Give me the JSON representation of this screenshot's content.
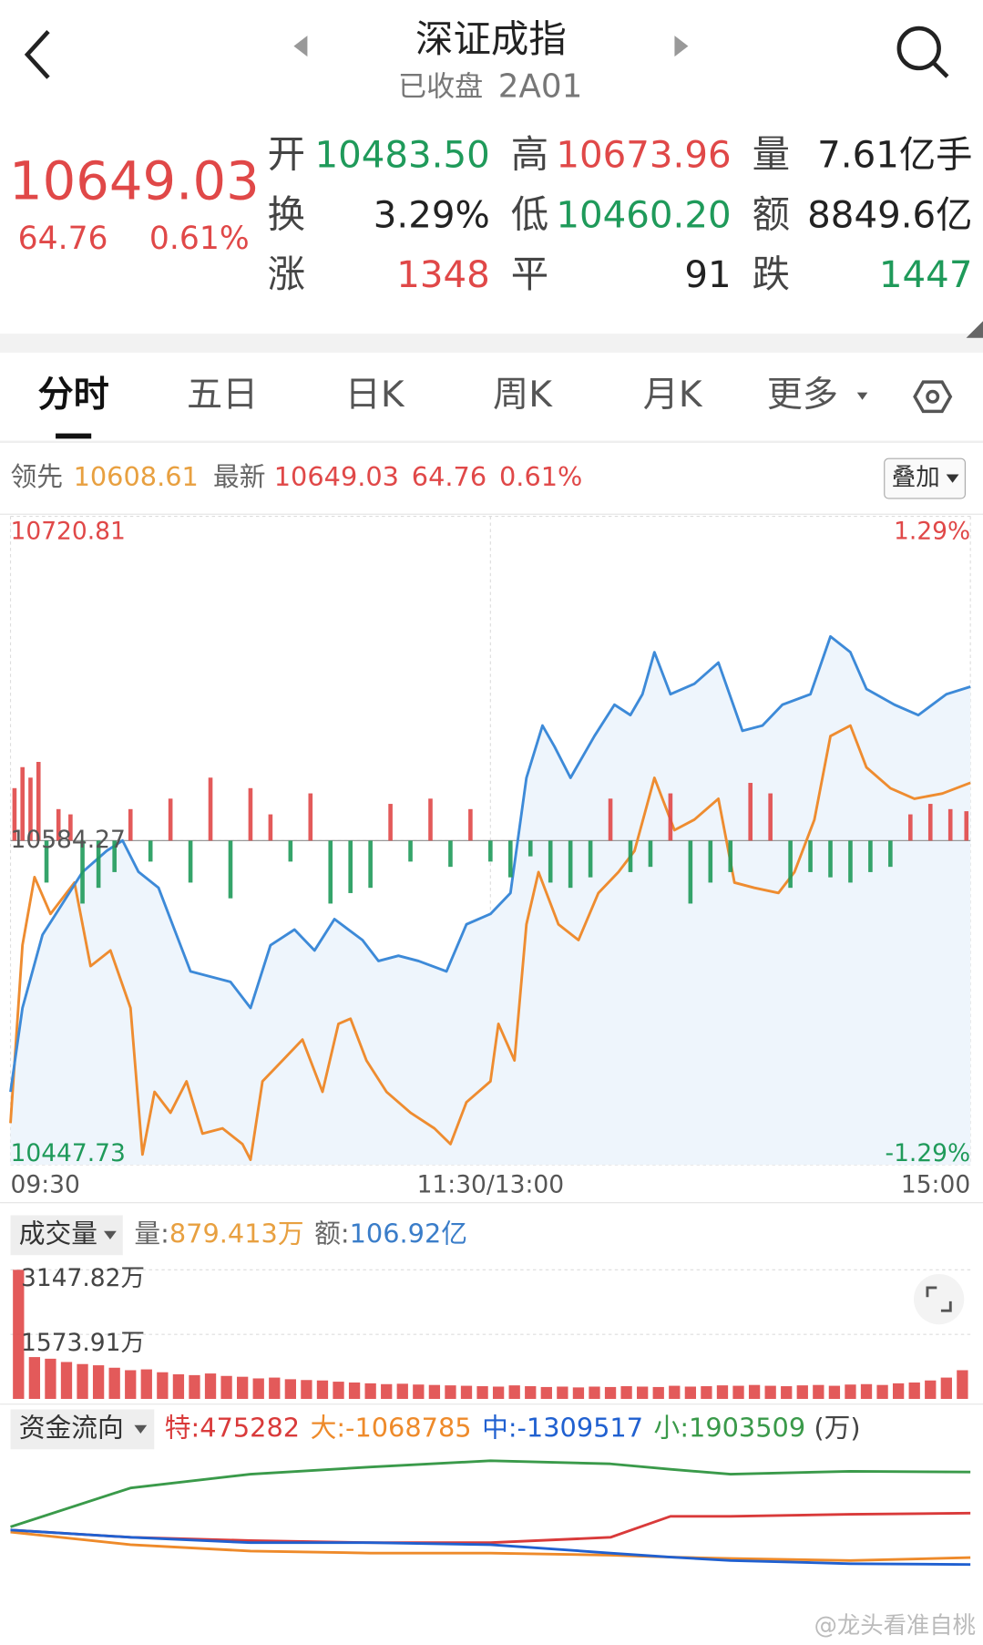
{
  "nav": {
    "title": "深证成指",
    "status": "已收盘",
    "code": "2A01"
  },
  "quote": {
    "price": "10649.03",
    "change": "64.76",
    "change_pct": "0.61%",
    "stats": [
      [
        {
          "label": "开",
          "value": "10483.50",
          "tone": "down"
        },
        {
          "label": "高",
          "value": "10673.96",
          "tone": "up"
        },
        {
          "label": "量",
          "value": "7.61亿手",
          "tone": "flat"
        }
      ],
      [
        {
          "label": "换",
          "value": "3.29%",
          "tone": "flat"
        },
        {
          "label": "低",
          "value": "10460.20",
          "tone": "down"
        },
        {
          "label": "额",
          "value": "8849.6亿",
          "tone": "flat"
        }
      ],
      [
        {
          "label": "涨",
          "value": "1348",
          "tone": "up"
        },
        {
          "label": "平",
          "value": "91",
          "tone": "flat"
        },
        {
          "label": "跌",
          "value": "1447",
          "tone": "down"
        }
      ]
    ]
  },
  "tabs": {
    "items": [
      "分时",
      "五日",
      "日K",
      "周K",
      "月K",
      "更多"
    ],
    "active": 0
  },
  "overlay_header": {
    "change": "64.76",
    "change_pct": "0.61%",
    "button": "叠加"
  },
  "volume_header": {
    "selector": "成交量",
    "volume_label": "量:",
    "volume_value": "879.413万",
    "amount_label": "额:",
    "amount_value": "106.92亿"
  },
  "flow_header": {
    "selector": "资金流向",
    "unit": "(万)"
  },
  "watermark": "@龙头看准自桃",
  "chart_data": [
    {
      "type": "line",
      "xlim": [
        0,
        240
      ],
      "xticks": [
        {
          "value": 0,
          "label": "09:30"
        },
        {
          "value": 120,
          "label": "11:30/13:00"
        },
        {
          "value": 240,
          "label": "15:00"
        }
      ],
      "ylim": [
        10447.73,
        10720.81
      ],
      "yticks": [
        10447.73,
        10584.27,
        10720.81
      ],
      "y2lim": [
        -1.29,
        1.29
      ],
      "y2ticks": [
        {
          "value": -1.29,
          "label": "-1.29%"
        },
        {
          "value": 1.29,
          "label": "1.29%"
        }
      ],
      "grid": true,
      "series": [
        {
          "name": "领先",
          "color": "#ee8c30",
          "x": [
            0,
            3,
            6,
            10,
            16,
            20,
            25,
            30,
            33,
            36,
            40,
            44,
            48,
            53,
            58,
            60,
            63,
            68,
            73,
            78,
            82,
            85,
            89,
            94,
            100,
            106,
            110,
            114,
            120,
            122,
            126,
            129,
            132,
            137,
            142,
            147,
            152,
            156,
            161,
            166,
            171,
            177,
            181,
            186,
            192,
            196,
            201,
            205,
            210,
            214,
            220,
            226,
            233,
            240
          ],
          "values": [
            10465.3,
            10540.2,
            10568.9,
            10553.4,
            10566.6,
            10531.4,
            10538.0,
            10513.8,
            10452.1,
            10478.5,
            10469.7,
            10482.9,
            10460.9,
            10463.1,
            10456.5,
            10449.9,
            10482.9,
            10491.7,
            10500.5,
            10478.5,
            10507.1,
            10509.3,
            10491.7,
            10478.5,
            10469.7,
            10463.1,
            10456.5,
            10474.1,
            10482.9,
            10507.1,
            10491.7,
            10549.0,
            10571.0,
            10549.0,
            10542.4,
            10562.2,
            10571.0,
            10579.9,
            10610.7,
            10588.7,
            10593.1,
            10601.9,
            10566.6,
            10564.4,
            10562.2,
            10571.0,
            10593.1,
            10628.3,
            10632.7,
            10615.1,
            10606.3,
            10601.9,
            10604.1,
            10608.61
          ]
        },
        {
          "name": "最新",
          "color": "#3d8ad8",
          "area": true,
          "x": [
            0,
            3,
            8,
            13,
            18,
            24,
            28,
            32,
            37,
            41,
            45,
            50,
            55,
            60,
            65,
            71,
            76,
            81,
            88,
            92,
            97,
            102,
            109,
            114,
            120,
            125,
            129,
            133,
            136,
            140,
            146,
            151,
            155,
            158,
            161,
            165,
            171,
            177,
            183,
            188,
            193,
            200,
            205,
            210,
            214,
            221,
            227,
            234,
            240
          ],
          "values": [
            10478.5,
            10513.8,
            10544.6,
            10557.8,
            10571.0,
            10579.9,
            10584.3,
            10571.1,
            10564.4,
            10546.8,
            10529.2,
            10527.0,
            10524.8,
            10513.8,
            10540.2,
            10546.8,
            10538.0,
            10551.2,
            10542.4,
            10533.6,
            10535.8,
            10533.6,
            10529.2,
            10549.0,
            10553.4,
            10562.2,
            10610.7,
            10632.7,
            10623.9,
            10610.7,
            10628.3,
            10641.5,
            10637.1,
            10645.9,
            10663.6,
            10645.9,
            10650.3,
            10659.2,
            10630.5,
            10632.7,
            10641.5,
            10645.9,
            10670.2,
            10663.6,
            10648.1,
            10641.5,
            10637.1,
            10645.9,
            10649.03
          ]
        }
      ]
    },
    {
      "type": "bar",
      "xlim": [
        0,
        240
      ],
      "ylim": [
        -309,
        309
      ],
      "colors": {
        "up": "#e04848",
        "down": "#1f9a5a"
      },
      "x": [
        1,
        3,
        5,
        7,
        9,
        12,
        15,
        18,
        22,
        26,
        30,
        35,
        40,
        45,
        50,
        55,
        60,
        65,
        70,
        75,
        80,
        85,
        90,
        95,
        100,
        105,
        110,
        115,
        120,
        125,
        130,
        135,
        140,
        145,
        150,
        155,
        160,
        165,
        170,
        175,
        180,
        185,
        190,
        195,
        200,
        205,
        210,
        215,
        220,
        225,
        230,
        235,
        239
      ],
      "values": [
        50,
        70,
        60,
        75,
        -40,
        30,
        25,
        -60,
        -45,
        -30,
        30,
        -20,
        40,
        -40,
        60,
        -55,
        50,
        25,
        -20,
        45,
        -60,
        -50,
        -45,
        35,
        -20,
        40,
        -25,
        30,
        -20,
        -35,
        -15,
        -40,
        -45,
        -35,
        40,
        -30,
        -25,
        45,
        -60,
        -40,
        -30,
        55,
        45,
        -45,
        -30,
        -35,
        -40,
        -30,
        -25,
        25,
        35,
        30,
        28
      ]
    },
    {
      "type": "bar",
      "color": "#e04848",
      "ylim": [
        0,
        3147.82
      ],
      "yticks": [
        {
          "value": 1573.91,
          "label": "1573.91万"
        },
        {
          "value": 3147.82,
          "label": "3147.82万"
        }
      ],
      "values": [
        3147.82,
        1020,
        980,
        900,
        850,
        820,
        760,
        700,
        720,
        650,
        600,
        580,
        620,
        560,
        540,
        500,
        520,
        480,
        460,
        450,
        420,
        400,
        380,
        360,
        370,
        350,
        340,
        330,
        320,
        310,
        300,
        330,
        310,
        290,
        300,
        280,
        300,
        290,
        310,
        300,
        290,
        320,
        300,
        310,
        330,
        320,
        340,
        320,
        310,
        330,
        340,
        320,
        350,
        360,
        340,
        380,
        400,
        450,
        520,
        700
      ]
    },
    {
      "type": "line",
      "xlim": [
        0,
        240
      ],
      "ylim": [
        -2920000,
        2550000
      ],
      "series": [
        {
          "name": "特:",
          "color": "#d93a3a",
          "x": [
            0,
            30,
            60,
            90,
            120,
            150,
            165,
            180,
            210,
            240
          ],
          "values": [
            -110000,
            -365000,
            -475000,
            -550000,
            -550000,
            -365000,
            365000,
            365000,
            440000,
            475282
          ]
        },
        {
          "name": "大:",
          "color": "#ee8a2a",
          "x": [
            0,
            30,
            60,
            90,
            120,
            150,
            165,
            180,
            210,
            240
          ],
          "values": [
            -180000,
            -620000,
            -840000,
            -910000,
            -910000,
            -985000,
            -1050000,
            -1100000,
            -1170000,
            -1068785
          ]
        },
        {
          "name": "中:",
          "color": "#2060d0",
          "x": [
            0,
            30,
            60,
            90,
            120,
            150,
            165,
            180,
            210,
            240
          ],
          "values": [
            -110000,
            -365000,
            -550000,
            -550000,
            -620000,
            -910000,
            -1050000,
            -1170000,
            -1280000,
            -1309517
          ]
        },
        {
          "name": "小:",
          "color": "#3a9a4a",
          "x": [
            0,
            30,
            60,
            90,
            120,
            150,
            165,
            180,
            210,
            240
          ],
          "values": [
            0,
            1350000,
            1830000,
            2080000,
            2300000,
            2190000,
            2000000,
            1830000,
            1930000,
            1903509
          ]
        }
      ]
    }
  ]
}
